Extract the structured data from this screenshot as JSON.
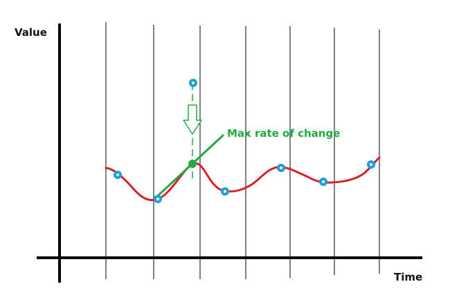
{
  "diagram": {
    "ylabel": "Value",
    "xlabel": "Time",
    "annotation": "Max rate of change",
    "colors": {
      "axes": "#000000",
      "grid": "#000000",
      "curve": "#d8202a",
      "sample": "#1f9ed8",
      "highlight": "#22a845",
      "guide": "#22a845"
    }
  }
}
